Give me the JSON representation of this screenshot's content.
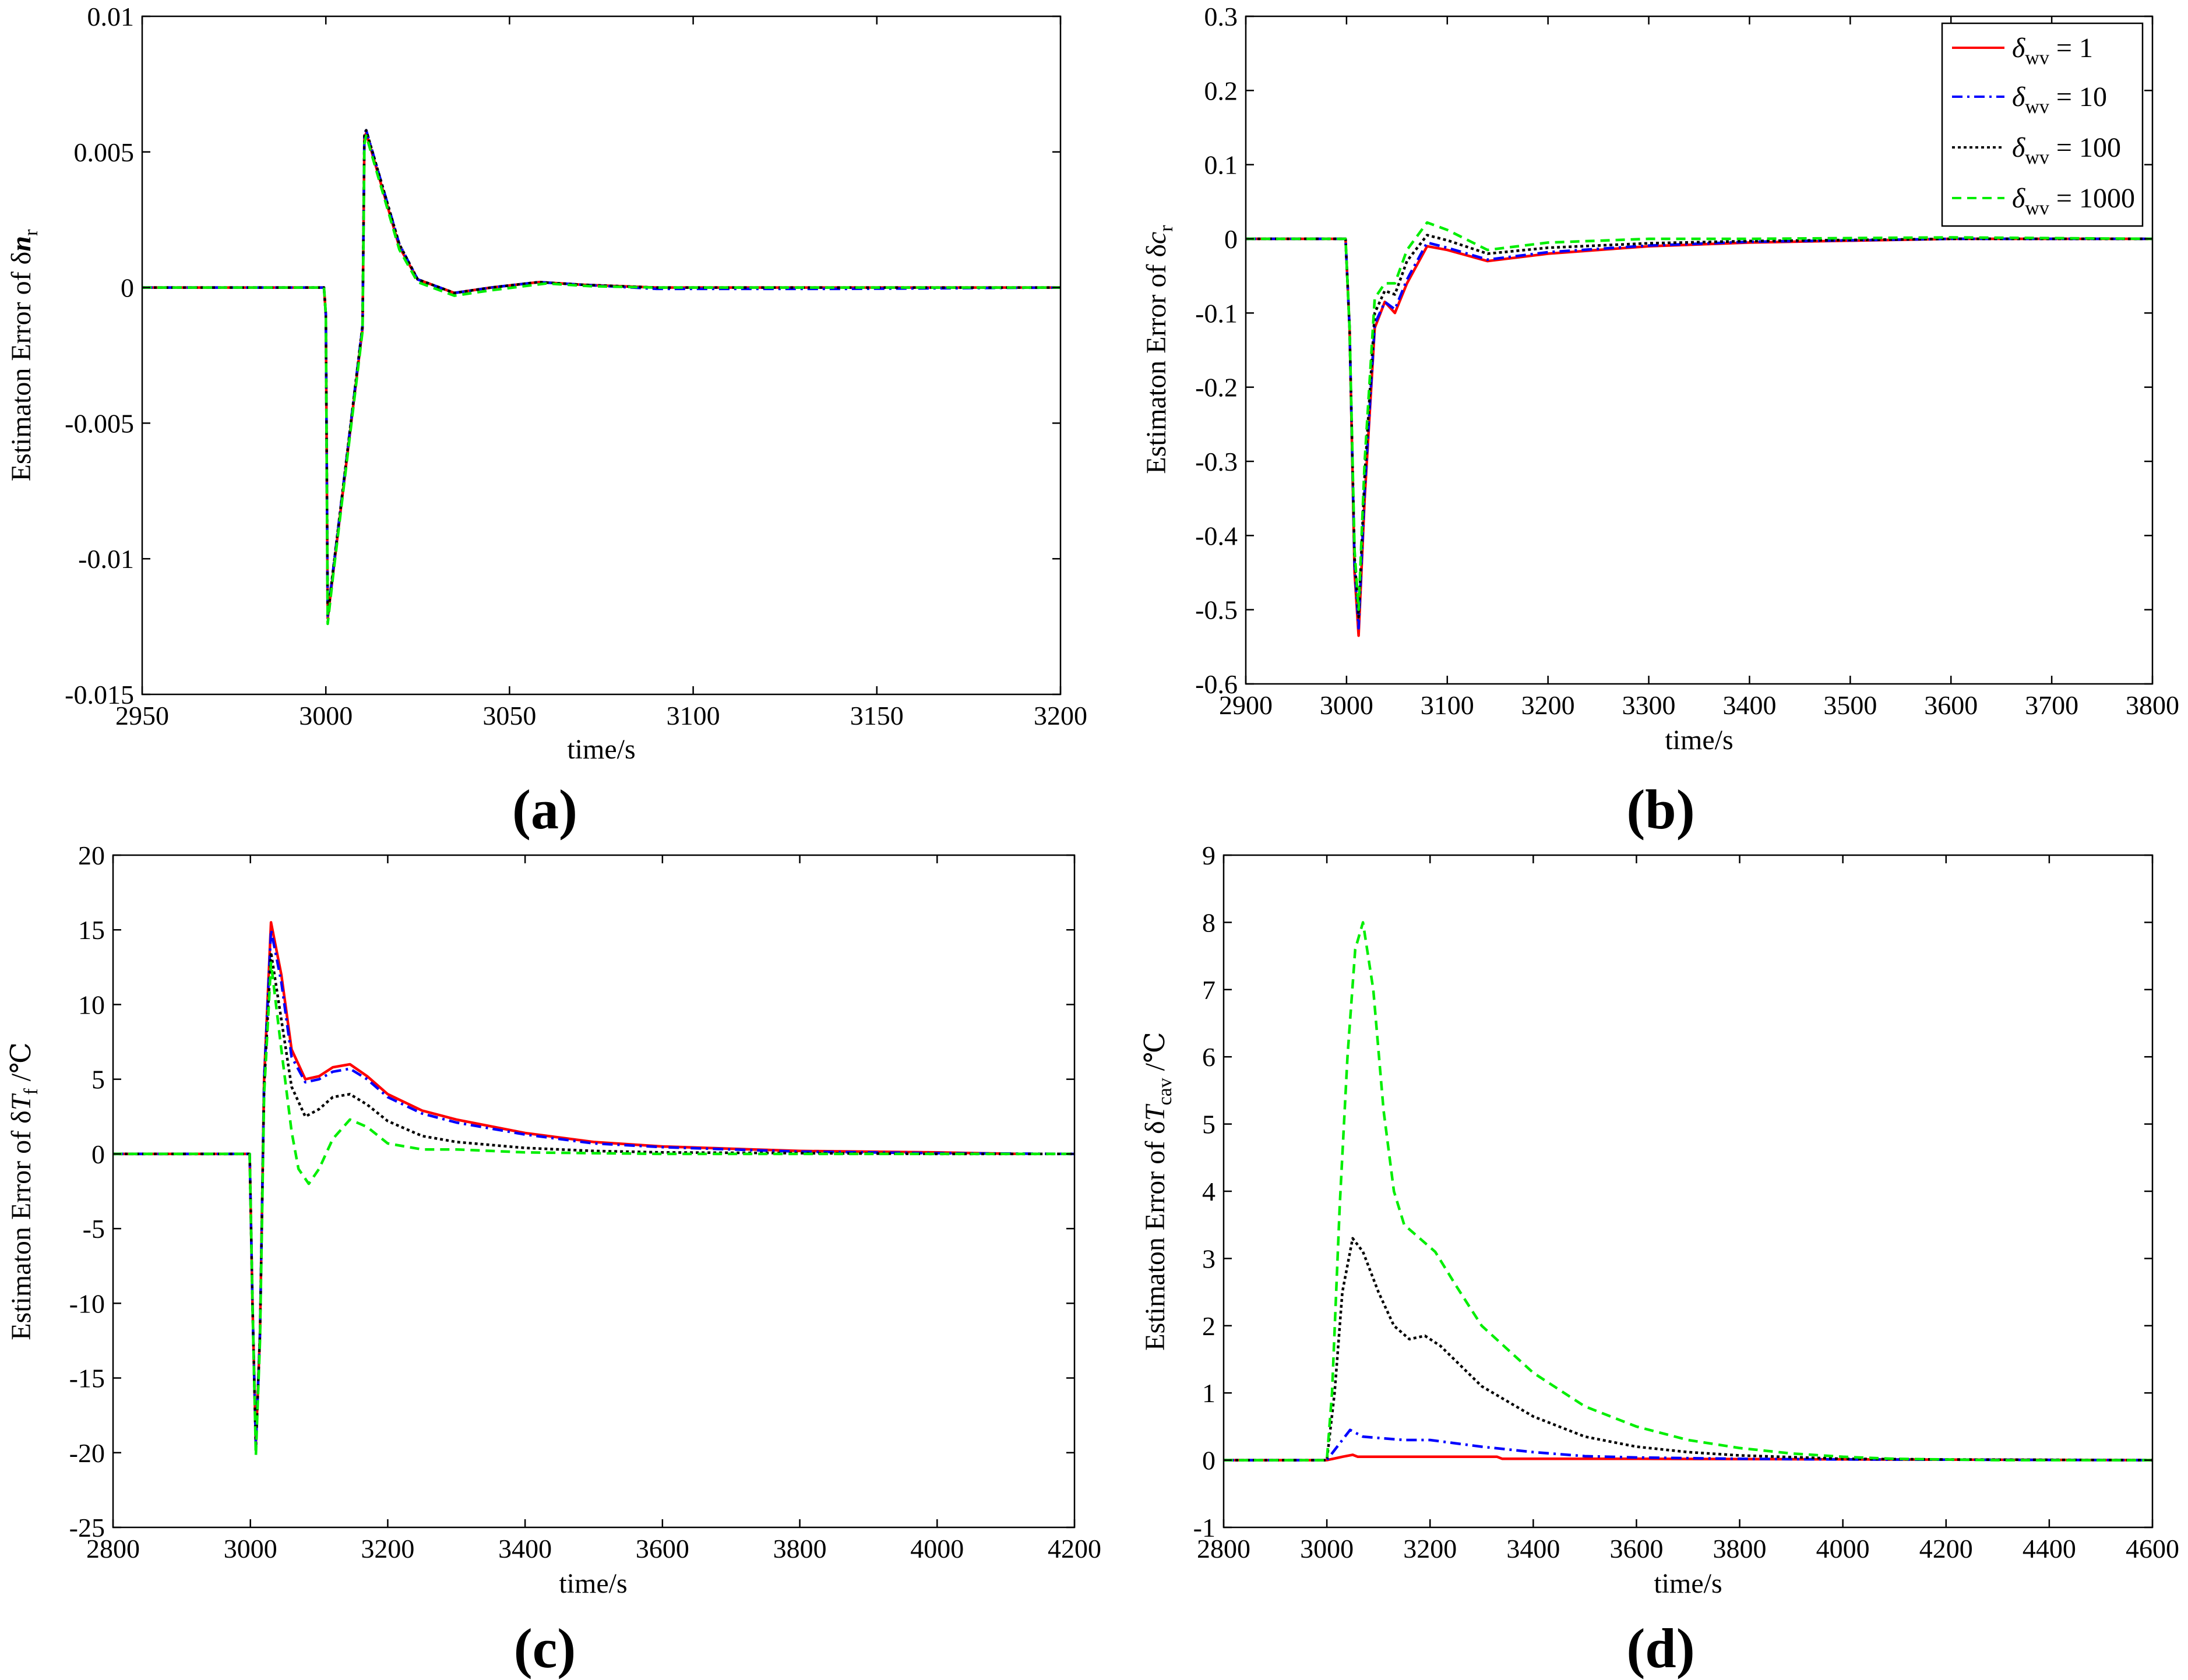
{
  "colors": {
    "s1": "#ff0000",
    "s10": "#0000ff",
    "s100": "#000000",
    "s1000": "#00ee00"
  },
  "legend": {
    "symbol": "δ",
    "subscript": "wv",
    "entries": [
      {
        "id": "s1",
        "value_text": " = 1"
      },
      {
        "id": "s10",
        "value_text": " = 10"
      },
      {
        "id": "s100",
        "value_text": " = 100"
      },
      {
        "id": "s1000",
        "value_text": " = 1000"
      }
    ]
  },
  "chart_data": [
    {
      "id": "a",
      "type": "line",
      "panel_label": "(a)",
      "xlabel": "time/s",
      "ylabel_prefix": "Estimaton Error of δ",
      "ylabel_var": "n",
      "ylabel_sub": "r",
      "ylabel_suffix": "",
      "xlim": [
        2950,
        3200
      ],
      "ylim": [
        -0.015,
        0.01
      ],
      "xticks": [
        2950,
        3000,
        3050,
        3100,
        3150,
        3200
      ],
      "xtick_labels": [
        "2950",
        "3000",
        "3050",
        "3100",
        "3150",
        "3200"
      ],
      "yticks": [
        -0.015,
        -0.01,
        -0.005,
        0,
        0.005,
        0.01
      ],
      "ytick_labels": [
        "-0.015",
        "-0.01",
        "-0.005",
        "0",
        "0.005",
        "0.01"
      ],
      "series": [
        {
          "name": "δwv = 1",
          "color_key": "s1",
          "x": [
            2950,
            2999.5,
            3000,
            3000.5,
            3002,
            3010,
            3010.5,
            3011,
            3020,
            3025,
            3035,
            3045,
            3058,
            3070,
            3090,
            3200
          ],
          "y": [
            0,
            0,
            -0.001,
            -0.0122,
            -0.0105,
            -0.0015,
            0.0055,
            0.0057,
            0.0015,
            0.0003,
            -0.0002,
            0,
            0.0002,
            0.0001,
            0,
            0
          ]
        },
        {
          "name": "δwv = 10",
          "color_key": "s10",
          "x": [
            2950,
            2999.5,
            3000,
            3000.5,
            3002,
            3010,
            3010.5,
            3011,
            3020,
            3025,
            3035,
            3045,
            3058,
            3070,
            3090,
            3140,
            3200
          ],
          "y": [
            0,
            0,
            -0.001,
            -0.0121,
            -0.0104,
            -0.0014,
            0.0057,
            0.0058,
            0.0016,
            0.0003,
            -0.0002,
            0,
            0.0002,
            0.0001,
            -5e-05,
            -5e-05,
            0
          ]
        },
        {
          "name": "δwv = 100",
          "color_key": "s100",
          "x": [
            2950,
            2999.5,
            3000,
            3000.5,
            3002,
            3010,
            3010.5,
            3011,
            3020,
            3025,
            3035,
            3045,
            3058,
            3070,
            3090,
            3200
          ],
          "y": [
            0,
            0,
            -0.001,
            -0.0121,
            -0.0104,
            -0.0014,
            0.0056,
            0.0058,
            0.0016,
            0.0003,
            -0.0002,
            0,
            0.0002,
            0.0001,
            0,
            0
          ]
        },
        {
          "name": "δwv = 1000",
          "color_key": "s1000",
          "x": [
            2950,
            2999.5,
            3000,
            3000.5,
            3002,
            3010,
            3010.5,
            3011,
            3020,
            3025,
            3035,
            3045,
            3060,
            3072,
            3090,
            3200
          ],
          "y": [
            0,
            0,
            -0.001,
            -0.0124,
            -0.0106,
            -0.0016,
            0.0053,
            0.0056,
            0.0014,
            0.0002,
            -0.0003,
            -0.0001,
            0.00015,
            5e-05,
            0,
            0
          ]
        }
      ]
    },
    {
      "id": "b",
      "type": "line",
      "panel_label": "(b)",
      "xlabel": "time/s",
      "ylabel_prefix": "Estimaton Error of δ",
      "ylabel_var": "c",
      "ylabel_sub": "r",
      "ylabel_suffix": "",
      "xlim": [
        2900,
        3800
      ],
      "ylim": [
        -0.6,
        0.3
      ],
      "xticks": [
        2900,
        3000,
        3100,
        3200,
        3300,
        3400,
        3500,
        3600,
        3700,
        3800
      ],
      "xtick_labels": [
        "2900",
        "3000",
        "3100",
        "3200",
        "3300",
        "3400",
        "3500",
        "3600",
        "3700",
        "3800"
      ],
      "yticks": [
        -0.6,
        -0.5,
        -0.4,
        -0.3,
        -0.2,
        -0.1,
        0,
        0.1,
        0.2,
        0.3
      ],
      "ytick_labels": [
        "-0.6",
        "-0.5",
        "-0.4",
        "-0.3",
        "-0.2",
        "-0.1",
        "0",
        "0.1",
        "0.2",
        "0.3"
      ],
      "legend_position": "top-right",
      "series": [
        {
          "name": "δwv = 1",
          "color_key": "s1",
          "x": [
            2900,
            2999,
            3003,
            3008,
            3012,
            3018,
            3028,
            3038,
            3048,
            3060,
            3080,
            3100,
            3140,
            3200,
            3300,
            3400,
            3600,
            3800
          ],
          "y": [
            0,
            0,
            -0.12,
            -0.45,
            -0.535,
            -0.35,
            -0.12,
            -0.085,
            -0.1,
            -0.06,
            -0.01,
            -0.015,
            -0.03,
            -0.02,
            -0.01,
            -0.005,
            0,
            0
          ]
        },
        {
          "name": "δwv = 10",
          "color_key": "s10",
          "x": [
            2900,
            2999,
            3003,
            3008,
            3012,
            3018,
            3028,
            3038,
            3048,
            3060,
            3080,
            3100,
            3140,
            3200,
            3300,
            3400,
            3600,
            3800
          ],
          "y": [
            0,
            0,
            -0.12,
            -0.44,
            -0.525,
            -0.34,
            -0.115,
            -0.085,
            -0.095,
            -0.055,
            -0.005,
            -0.012,
            -0.028,
            -0.018,
            -0.009,
            -0.004,
            0,
            0
          ]
        },
        {
          "name": "δwv = 100",
          "color_key": "s100",
          "x": [
            2900,
            2999,
            3003,
            3008,
            3012,
            3018,
            3028,
            3038,
            3048,
            3060,
            3080,
            3100,
            3140,
            3200,
            3300,
            3400,
            3600,
            3800
          ],
          "y": [
            0,
            0,
            -0.12,
            -0.43,
            -0.51,
            -0.32,
            -0.1,
            -0.07,
            -0.075,
            -0.03,
            0.005,
            -0.002,
            -0.02,
            -0.012,
            -0.006,
            -0.003,
            0,
            0
          ]
        },
        {
          "name": "δwv = 1000",
          "color_key": "s1000",
          "x": [
            2900,
            2999,
            3003,
            3008,
            3012,
            3018,
            3028,
            3038,
            3048,
            3060,
            3080,
            3100,
            3140,
            3200,
            3300,
            3400,
            3600,
            3800
          ],
          "y": [
            0,
            0,
            -0.12,
            -0.42,
            -0.5,
            -0.3,
            -0.08,
            -0.06,
            -0.06,
            -0.015,
            0.022,
            0.012,
            -0.015,
            -0.005,
            0,
            0,
            0.002,
            0
          ]
        }
      ]
    },
    {
      "id": "c",
      "type": "line",
      "panel_label": "(c)",
      "xlabel": "time/s",
      "ylabel_prefix": "Estimaton Error of δ",
      "ylabel_var": "T",
      "ylabel_sub": "f",
      "ylabel_suffix": " /℃",
      "xlim": [
        2800,
        4200
      ],
      "ylim": [
        -25,
        20
      ],
      "xticks": [
        2800,
        3000,
        3200,
        3400,
        3600,
        3800,
        4000,
        4200
      ],
      "xtick_labels": [
        "2800",
        "3000",
        "3200",
        "3400",
        "3600",
        "3800",
        "4000",
        "4200"
      ],
      "yticks": [
        -25,
        -20,
        -15,
        -10,
        -5,
        0,
        5,
        10,
        15,
        20
      ],
      "ytick_labels": [
        "-25",
        "-20",
        "-15",
        "-10",
        "-5",
        "0",
        "5",
        "10",
        "15",
        "20"
      ],
      "series": [
        {
          "name": "δwv = 1",
          "color_key": "s1",
          "x": [
            2800,
            2999,
            3003,
            3008,
            3014,
            3020,
            3030,
            3045,
            3060,
            3080,
            3100,
            3120,
            3145,
            3170,
            3200,
            3250,
            3300,
            3400,
            3500,
            3600,
            3800,
            4000,
            4120
          ],
          "y": [
            0,
            0,
            -10,
            -19.5,
            -12,
            5,
            15.5,
            12,
            7,
            5,
            5.2,
            5.8,
            6,
            5.2,
            4,
            2.9,
            2.3,
            1.4,
            0.8,
            0.5,
            0.2,
            0.1,
            0
          ]
        },
        {
          "name": "δwv = 10",
          "color_key": "s10",
          "x": [
            2800,
            2999,
            3003,
            3008,
            3014,
            3020,
            3030,
            3045,
            3060,
            3080,
            3100,
            3120,
            3145,
            3170,
            3200,
            3250,
            3300,
            3400,
            3500,
            3600,
            3800,
            4000,
            4200
          ],
          "y": [
            0,
            0,
            -10,
            -19.5,
            -12,
            5,
            15,
            11.5,
            6.5,
            4.8,
            5,
            5.5,
            5.7,
            5,
            3.8,
            2.7,
            2.1,
            1.3,
            0.7,
            0.45,
            0.15,
            0.05,
            0
          ]
        },
        {
          "name": "δwv = 100",
          "color_key": "s100",
          "x": [
            2800,
            2999,
            3003,
            3008,
            3014,
            3020,
            3030,
            3045,
            3060,
            3080,
            3100,
            3120,
            3145,
            3170,
            3200,
            3250,
            3300,
            3400,
            3500,
            3600,
            3800,
            4000,
            4200
          ],
          "y": [
            0,
            0,
            -10,
            -19.8,
            -12,
            4.5,
            13.5,
            9,
            4.5,
            2.5,
            3,
            3.8,
            4,
            3.3,
            2.2,
            1.2,
            0.8,
            0.4,
            0.2,
            0.1,
            0.05,
            0,
            0
          ]
        },
        {
          "name": "δwv = 1000",
          "color_key": "s1000",
          "x": [
            2800,
            2999,
            3003,
            3008,
            3014,
            3020,
            3030,
            3045,
            3060,
            3070,
            3085,
            3100,
            3120,
            3145,
            3170,
            3200,
            3250,
            3300,
            3400,
            3600,
            4200
          ],
          "y": [
            0,
            0,
            -10,
            -20.2,
            -12.5,
            4,
            12.8,
            7,
            1.5,
            -1,
            -2,
            -1,
            1,
            2.3,
            1.8,
            0.7,
            0.3,
            0.3,
            0.1,
            0,
            0
          ]
        }
      ]
    },
    {
      "id": "d",
      "type": "line",
      "panel_label": "(d)",
      "xlabel": "time/s",
      "ylabel_prefix": "Estimaton Error of δ",
      "ylabel_var": "T",
      "ylabel_sub": "cav",
      "ylabel_suffix": " /℃",
      "xlim": [
        2800,
        4600
      ],
      "ylim": [
        -1,
        9
      ],
      "xticks": [
        2800,
        3000,
        3200,
        3400,
        3600,
        3800,
        4000,
        4200,
        4400,
        4600
      ],
      "xtick_labels": [
        "2800",
        "3000",
        "3200",
        "3400",
        "3600",
        "3800",
        "4000",
        "4200",
        "4400",
        "4600"
      ],
      "yticks": [
        -1,
        0,
        1,
        2,
        3,
        4,
        5,
        6,
        7,
        8,
        9
      ],
      "ytick_labels": [
        "-1",
        "0",
        "1",
        "2",
        "3",
        "4",
        "5",
        "6",
        "7",
        "8",
        "9"
      ],
      "series": [
        {
          "name": "δwv = 1",
          "color_key": "s1",
          "x": [
            2800,
            3000,
            3030,
            3050,
            3060,
            3100,
            3200,
            3330,
            3340,
            3600,
            4600
          ],
          "y": [
            0,
            0,
            0.05,
            0.08,
            0.05,
            0.05,
            0.05,
            0.05,
            0.02,
            0.02,
            0
          ]
        },
        {
          "name": "δwv = 10",
          "color_key": "s10",
          "x": [
            2800,
            3000,
            3020,
            3045,
            3070,
            3100,
            3150,
            3200,
            3300,
            3400,
            3500,
            3600,
            3800,
            4000,
            4600
          ],
          "y": [
            0,
            0,
            0.2,
            0.45,
            0.35,
            0.33,
            0.3,
            0.3,
            0.2,
            0.12,
            0.06,
            0.04,
            0.02,
            0.01,
            0
          ]
        },
        {
          "name": "δwv = 100",
          "color_key": "s100",
          "x": [
            2800,
            3000,
            3015,
            3030,
            3050,
            3070,
            3100,
            3130,
            3160,
            3190,
            3220,
            3260,
            3300,
            3400,
            3500,
            3600,
            3700,
            3800,
            4000,
            4200,
            4600
          ],
          "y": [
            0,
            0,
            1,
            2.5,
            3.3,
            3.1,
            2.5,
            2,
            1.8,
            1.85,
            1.7,
            1.4,
            1.1,
            0.65,
            0.35,
            0.2,
            0.12,
            0.07,
            0.02,
            0.01,
            0
          ]
        },
        {
          "name": "δwv = 1000",
          "color_key": "s1000",
          "x": [
            2800,
            3000,
            3010,
            3025,
            3040,
            3055,
            3070,
            3090,
            3110,
            3130,
            3150,
            3180,
            3210,
            3250,
            3300,
            3400,
            3500,
            3600,
            3700,
            3800,
            3900,
            4000,
            4100,
            4300,
            4600
          ],
          "y": [
            0,
            0,
            1,
            3.8,
            6,
            7.6,
            8,
            7,
            5.2,
            4,
            3.5,
            3.3,
            3.1,
            2.6,
            2,
            1.3,
            0.8,
            0.5,
            0.3,
            0.18,
            0.1,
            0.05,
            0.02,
            0,
            0
          ]
        }
      ]
    }
  ]
}
